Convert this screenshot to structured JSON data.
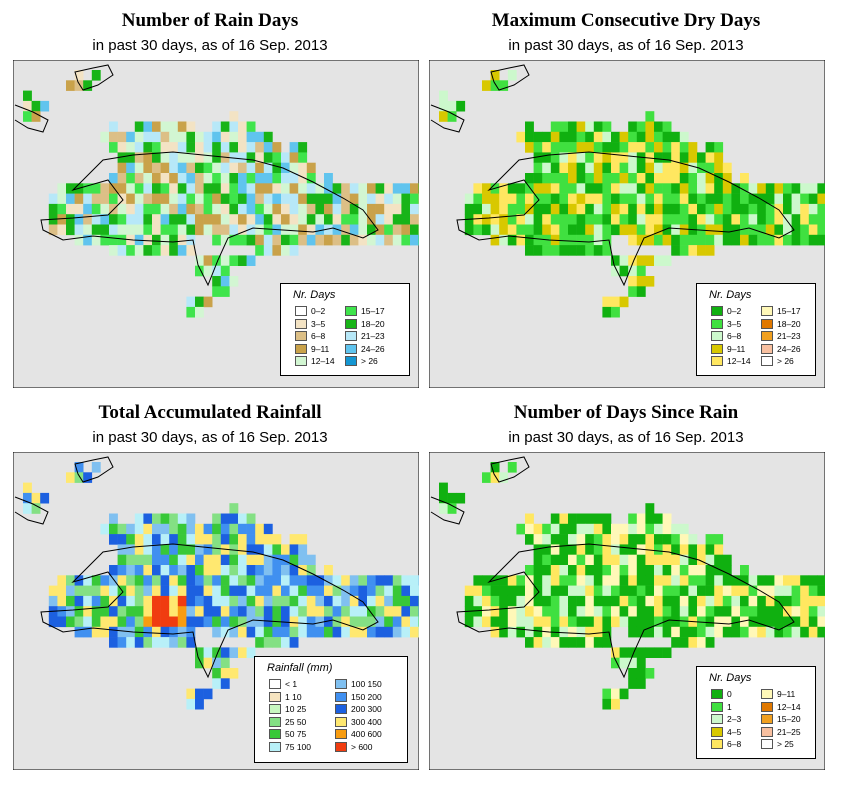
{
  "panels": [
    {
      "title": "Number of Rain Days",
      "subtitle": "in past 30 days, as of  16 Sep. 2013",
      "legend_title": "Nr. Days",
      "legend": [
        {
          "label": "0–2",
          "color": "#ffffff"
        },
        {
          "label": "3–5",
          "color": "#f3e3c4"
        },
        {
          "label": "6–8",
          "color": "#dcbf86"
        },
        {
          "label": "9–11",
          "color": "#c9a24a"
        },
        {
          "label": "12–14",
          "color": "#d2f6d2"
        },
        {
          "label": "15–17",
          "color": "#3fe44c"
        },
        {
          "label": "18–20",
          "color": "#18b418"
        },
        {
          "label": "21–23",
          "color": "#b7e8f8"
        },
        {
          "label": "24–26",
          "color": "#60c4ee"
        },
        {
          "label": "> 26",
          "color": "#1496d2"
        }
      ]
    },
    {
      "title": "Maximum Consecutive Dry Days",
      "subtitle": "in past 30 days, as of  16 Sep. 2013",
      "legend_title": "Nr. Days",
      "legend": [
        {
          "label": "0–2",
          "color": "#10b010"
        },
        {
          "label": "3–5",
          "color": "#40e040"
        },
        {
          "label": "6–8",
          "color": "#ccf8cc"
        },
        {
          "label": "9–11",
          "color": "#d8c800"
        },
        {
          "label": "12–14",
          "color": "#ffe760"
        },
        {
          "label": "15–17",
          "color": "#fff8b8"
        },
        {
          "label": "18–20",
          "color": "#e07800"
        },
        {
          "label": "21–23",
          "color": "#f0a020"
        },
        {
          "label": "24–26",
          "color": "#f8c0a0"
        },
        {
          "label": "> 26",
          "color": "#ffffff"
        }
      ]
    },
    {
      "title": "Total Accumulated Rainfall",
      "subtitle": "in past 30 days, as of  16 Sep. 2013",
      "legend_title": "Rainfall (mm)",
      "legend": [
        {
          "label": "< 1",
          "color": "#ffffff"
        },
        {
          "label": "1   10",
          "color": "#f6e4c0"
        },
        {
          "label": "10   25",
          "color": "#c8f8c0"
        },
        {
          "label": "25   50",
          "color": "#84e084"
        },
        {
          "label": "50   75",
          "color": "#38c838"
        },
        {
          "label": "75   100",
          "color": "#b8f0f8"
        },
        {
          "label": "100   150",
          "color": "#80c0f0"
        },
        {
          "label": "150   200",
          "color": "#4090f0"
        },
        {
          "label": "200   300",
          "color": "#1c60e0"
        },
        {
          "label": "300   400",
          "color": "#ffe870"
        },
        {
          "label": "400   600",
          "color": "#f89c10"
        },
        {
          "label": "> 600",
          "color": "#f03c10"
        }
      ]
    },
    {
      "title": "Number of Days Since Rain",
      "subtitle": "in past 30 days, as of  16 Sep. 2013",
      "legend_title": "Nr. Days",
      "legend": [
        {
          "label": "0",
          "color": "#10b010"
        },
        {
          "label": "1",
          "color": "#40e040"
        },
        {
          "label": "2–3",
          "color": "#ccf8cc"
        },
        {
          "label": "4–5",
          "color": "#d8c800"
        },
        {
          "label": "6–8",
          "color": "#ffe760"
        },
        {
          "label": "9–11",
          "color": "#fff8b8"
        },
        {
          "label": "12–14",
          "color": "#e07800"
        },
        {
          "label": "15–20",
          "color": "#f0a020"
        },
        {
          "label": "21–25",
          "color": "#f8c0a0"
        },
        {
          "label": "> 25",
          "color": "#ffffff"
        }
      ]
    }
  ],
  "colors": {
    "map_background": "#e4e4e4",
    "coast": "#000000"
  }
}
